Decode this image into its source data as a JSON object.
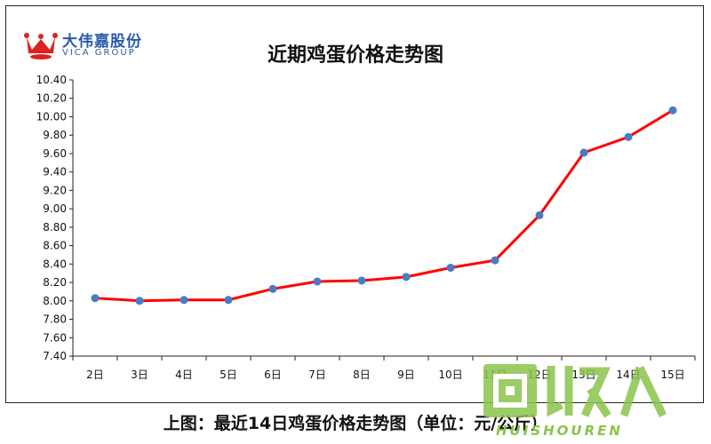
{
  "logo": {
    "name_cn": "大伟嘉股份",
    "name_en": "VICA GROUP",
    "icon": "crown-icon"
  },
  "caption": "上图：最近14日鸡蛋价格走势图（单位：元/公斤）",
  "watermark": {
    "text": "HUISHOUREN",
    "glyphs": "回收人"
  },
  "colors": {
    "line": "#ff0000",
    "marker": "#4a7bc4",
    "logo": "#2a5aa8",
    "watermark": "#8bc34a"
  },
  "chart_data": {
    "type": "line",
    "title": "近期鸡蛋价格走势图",
    "xlabel": "",
    "ylabel": "",
    "categories": [
      "2日",
      "3日",
      "4日",
      "5日",
      "6日",
      "7日",
      "8日",
      "9日",
      "10日",
      "11日",
      "12日",
      "13日",
      "14日",
      "15日"
    ],
    "series": [
      {
        "values": [
          8.03,
          8.0,
          8.01,
          8.01,
          8.13,
          8.21,
          8.22,
          8.26,
          8.36,
          8.44,
          8.93,
          9.61,
          9.78,
          10.07
        ]
      }
    ],
    "ylim": [
      7.4,
      10.4
    ],
    "yticks": [
      "7.40",
      "7.60",
      "7.80",
      "8.00",
      "8.20",
      "8.40",
      "8.60",
      "8.80",
      "9.00",
      "9.20",
      "9.40",
      "9.60",
      "9.80",
      "10.00",
      "10.20",
      "10.40"
    ],
    "grid": false,
    "legend": "none"
  }
}
